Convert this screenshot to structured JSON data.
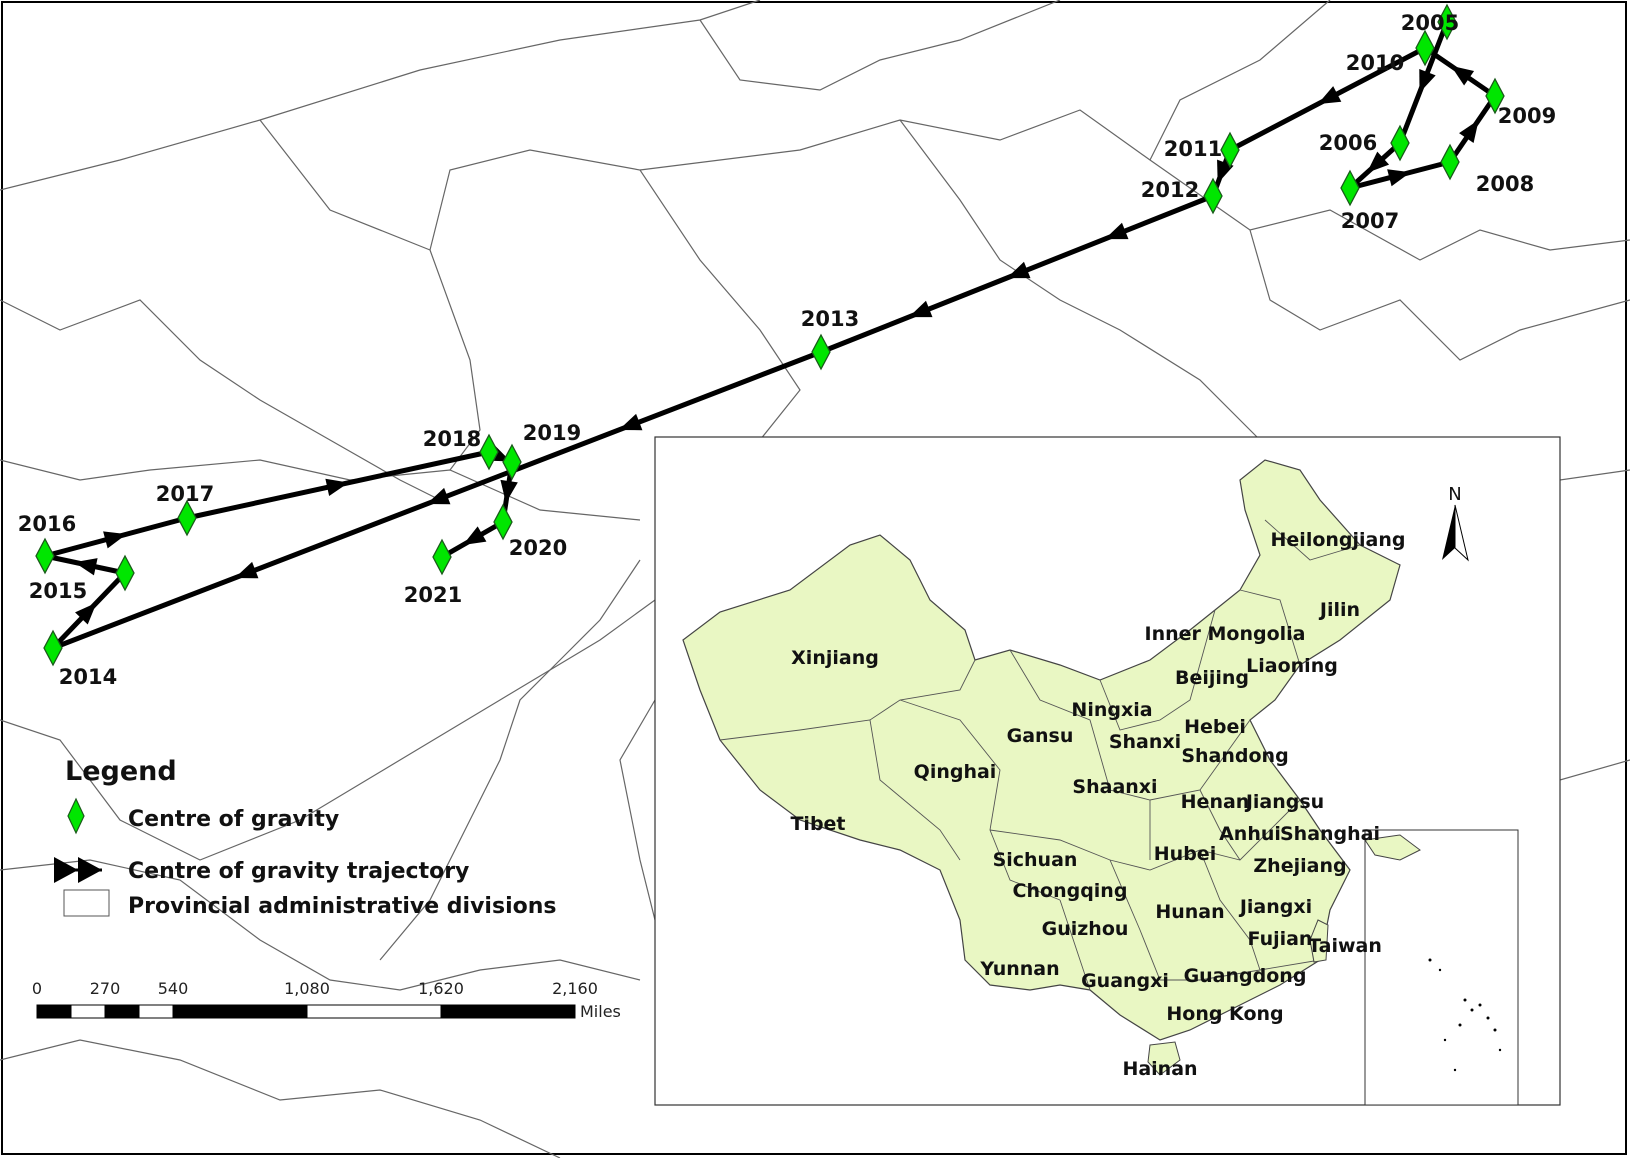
{
  "map": {
    "colors": {
      "marker_fill": "#00e600",
      "marker_stroke": "#1a5a1a",
      "trajectory": "#000000",
      "china_fill": "#e9f7c3",
      "boundary": "#555555"
    },
    "centres_of_gravity": [
      "2005",
      "2006",
      "2007",
      "2008",
      "2009",
      "2010",
      "2011",
      "2012",
      "2013",
      "2014",
      "2015",
      "2016",
      "2017",
      "2018",
      "2019",
      "2020",
      "2021"
    ],
    "provinces": [
      "Xinjiang",
      "Tibet",
      "Qinghai",
      "Gansu",
      "Inner Mongolia",
      "Heilongjiang",
      "Jilin",
      "Liaoning",
      "Beijing",
      "Ningxia",
      "Shanxi",
      "Hebei",
      "Shandong",
      "Shaanxi",
      "Henan",
      "Jiangsu",
      "Anhui",
      "Shanghai",
      "Sichuan",
      "Hubei",
      "Zhejiang",
      "Chongqing",
      "Hunan",
      "Jiangxi",
      "Guizhou",
      "Fujian",
      "Taiwan",
      "Yunnan",
      "Guangxi",
      "Guangdong",
      "Hong Kong",
      "Hainan"
    ],
    "north_arrow": "N"
  },
  "legend": {
    "title": "Legend",
    "items": [
      {
        "label": "Centre of gravity",
        "icon": "green-diamond-icon"
      },
      {
        "label": "Centre of gravity trajectory",
        "icon": "double-arrow-icon"
      },
      {
        "label": "Provincial administrative divisions",
        "icon": "rectangle-outline-icon"
      }
    ]
  },
  "scale_bar": {
    "ticks": [
      "0",
      "270",
      "540",
      "1,080",
      "1,620",
      "2,160"
    ],
    "unit": "Miles"
  }
}
